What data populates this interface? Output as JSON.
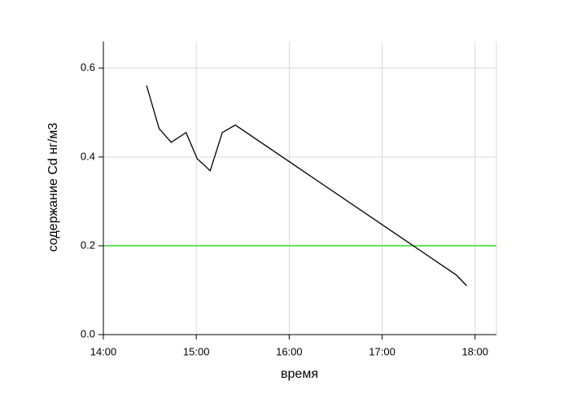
{
  "chart_data": {
    "type": "line",
    "x_label": "время",
    "y_label": "содержание Cd нг/м3",
    "series": [
      {
        "color": "#000000",
        "x": [
          14.465,
          14.6,
          14.73,
          14.89,
          15.01,
          15.15,
          15.28,
          15.42,
          17.8,
          17.91
        ],
        "values": [
          0.561,
          0.464,
          0.433,
          0.455,
          0.396,
          0.369,
          0.455,
          0.472,
          0.134,
          0.11
        ]
      }
    ],
    "threshold": 0.2,
    "threshold_color": "#33dd33",
    "xlim": [
      14,
      18.23
    ],
    "xticks": [
      {
        "value": 14,
        "label": "14:00"
      },
      {
        "value": 15,
        "label": "15:00"
      },
      {
        "value": 16,
        "label": "16:00"
      },
      {
        "value": 17,
        "label": "17:00"
      },
      {
        "value": 18,
        "label": "18:00"
      }
    ],
    "ylim": [
      0,
      0.66
    ],
    "yticks": [
      {
        "value": 0,
        "label": "0.0"
      },
      0.2,
      0.4,
      0.6
    ],
    "grid": true
  }
}
